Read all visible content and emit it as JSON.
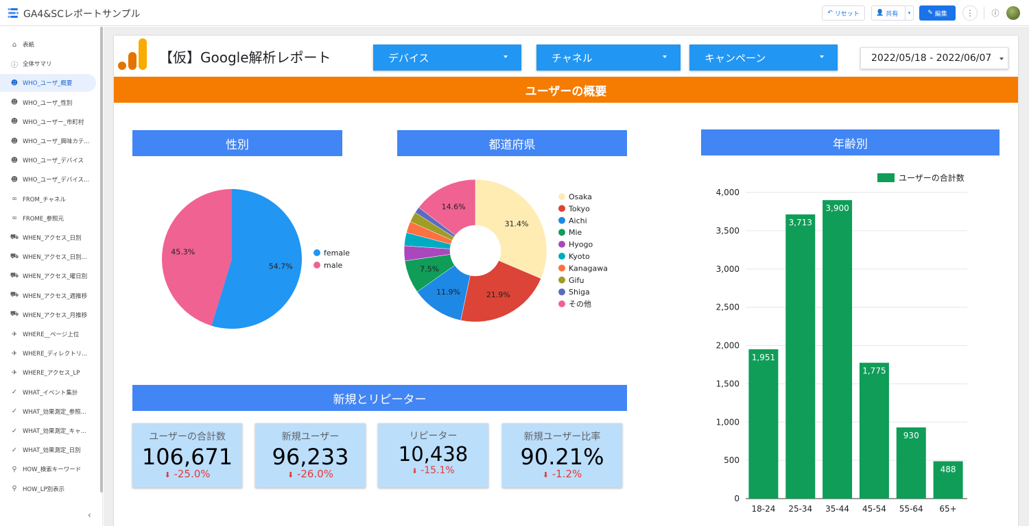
{
  "app": {
    "title": "GA4&SCレポートサンプル",
    "buttons": {
      "reset": "リセット",
      "share": "共有",
      "edit": "編集"
    }
  },
  "sidebar": {
    "items": [
      {
        "label": "表紙",
        "icon": "home-icon"
      },
      {
        "label": "全体サマリ",
        "icon": "info-icon"
      },
      {
        "label": "WHO_ユーザ_概要",
        "icon": "face-icon",
        "active": true
      },
      {
        "label": "WHO_ユーザ_性別",
        "icon": "face-icon"
      },
      {
        "label": "WHO_ユーザー_市町村",
        "icon": "face-icon"
      },
      {
        "label": "WHO_ユーザ_興味カテ...",
        "icon": "face-icon"
      },
      {
        "label": "WHO_ユーザ_デバイス",
        "icon": "face-icon"
      },
      {
        "label": "WHO_ユーザ_デバイス...",
        "icon": "face-icon"
      },
      {
        "label": "FROM_チャネル",
        "icon": "link-icon"
      },
      {
        "label": "FROME_参照元",
        "icon": "link-icon"
      },
      {
        "label": "WHEN_アクセス_日別",
        "icon": "truck-icon"
      },
      {
        "label": "WHEN_アクセス_日別...",
        "icon": "truck-icon"
      },
      {
        "label": "WHEN_アクセス_曜日別",
        "icon": "truck-icon"
      },
      {
        "label": "WHEN_アクセス_週推移",
        "icon": "truck-icon"
      },
      {
        "label": "WHEN_アクセス_月推移",
        "icon": "truck-icon"
      },
      {
        "label": "WHERE__ページ上位",
        "icon": "airplane-icon"
      },
      {
        "label": "WHERE_ディレクトリ...",
        "icon": "airplane-icon"
      },
      {
        "label": "WHERE_アクセス_LP",
        "icon": "airplane-icon"
      },
      {
        "label": "WHAT_イベント集計",
        "icon": "check-icon"
      },
      {
        "label": "WHAT_効果測定_参照...",
        "icon": "check-icon"
      },
      {
        "label": "WHAT_効果測定_キャ...",
        "icon": "check-icon"
      },
      {
        "label": "WHAT_効果測定_日別",
        "icon": "check-icon"
      },
      {
        "label": "HOW_検索キーワード",
        "icon": "search-icon"
      },
      {
        "label": "HOW_LP別表示",
        "icon": "search-icon"
      }
    ]
  },
  "report": {
    "title": "【仮】Google解析レポート",
    "filters": [
      {
        "label": "デバイス"
      },
      {
        "label": "チャネル"
      },
      {
        "label": "キャンペーン"
      }
    ],
    "date_range": "2022/05/18 - 2022/06/07",
    "banner": "ユーザーの概要",
    "sections": {
      "gender": "性別",
      "prefecture": "都道府県",
      "age": "年齢別",
      "newrep": "新規とリピーター"
    },
    "kpis": [
      {
        "label": "ユーザーの合計数",
        "value": "106,671",
        "delta": "-25.0%"
      },
      {
        "label": "新規ユーザー",
        "value": "96,233",
        "delta": "-26.0%"
      },
      {
        "label": "リピーター",
        "value": "10,438",
        "delta": "-15.1%"
      },
      {
        "label": "新規ユーザー比率",
        "value": "90.21%",
        "delta": "-1.2%"
      }
    ]
  },
  "colors": {
    "accent": "#1a73e8",
    "banner": "#f57c00",
    "section": "#4285f4",
    "filter": "#2196f3",
    "kpi_bg": "#bbdefb",
    "negative": "#e53935",
    "bar": "#0f9d58"
  },
  "chart_data": [
    {
      "type": "pie",
      "labels": [
        "female",
        "male"
      ],
      "values": [
        54.7,
        45.3
      ],
      "value_labels": [
        "54.7%",
        "45.3%"
      ],
      "colors": [
        "#2196f3",
        "#f06292"
      ],
      "legend": "right"
    },
    {
      "type": "pie",
      "donut": true,
      "labels": [
        "Osaka",
        "Tokyo",
        "Aichi",
        "Mie",
        "Hyogo",
        "Kyoto",
        "Kanagawa",
        "Gifu",
        "Shiga",
        "その他"
      ],
      "values": [
        31.4,
        21.9,
        11.9,
        7.5,
        3.4,
        3.0,
        2.6,
        2.3,
        1.4,
        14.6
      ],
      "value_labels": [
        "31.4%",
        "21.9%",
        "11.9%",
        "7.5%",
        "",
        "",
        "",
        "",
        "",
        "14.6%"
      ],
      "colors": [
        "#ffecb3",
        "#db4437",
        "#1e88e5",
        "#0f9d58",
        "#ab47bc",
        "#00acc1",
        "#ff7043",
        "#9e9d24",
        "#5c6bc0",
        "#f06292"
      ],
      "legend": "right"
    },
    {
      "type": "bar",
      "categories": [
        "18-24",
        "25-34",
        "35-44",
        "45-54",
        "55-64",
        "65+"
      ],
      "series": [
        {
          "name": "ユーザーの合計数",
          "values": [
            1951,
            3713,
            3900,
            1775,
            930,
            488
          ]
        }
      ],
      "value_labels": [
        "1,951",
        "3,713",
        "3,900",
        "1,775",
        "930",
        "488"
      ],
      "yticks": [
        "0",
        "500",
        "1,000",
        "1,500",
        "2,000",
        "2,500",
        "3,000",
        "3,500",
        "4,000"
      ],
      "ylim": [
        0,
        4000
      ],
      "grid": true,
      "legend": "top-right"
    }
  ]
}
